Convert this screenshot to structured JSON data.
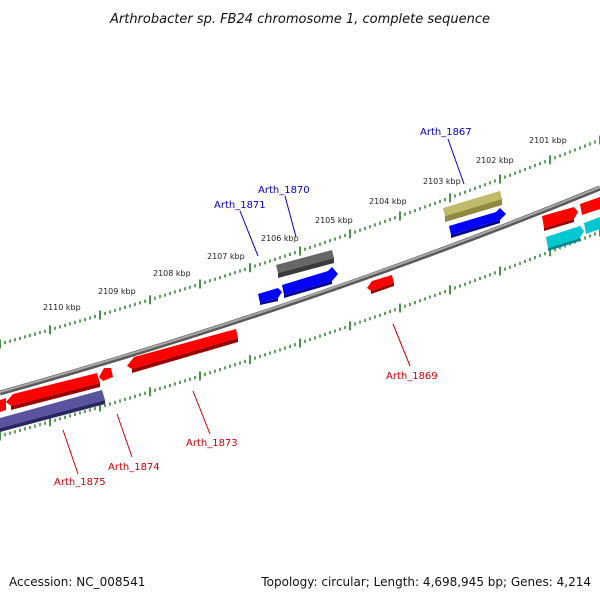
{
  "title": "Arthrobacter sp. FB24 chromosome 1, complete sequence",
  "footer": {
    "accession": "Accession: NC_008541",
    "summary": "Topology: circular; Length: 4,698,945 bp; Genes: 4,214"
  },
  "colors": {
    "backbone": "#888888",
    "ruler_ticks": "#1a7a1a",
    "label_forward": "#0000cc",
    "label_reverse": "#cc0000",
    "gene_red": "#ff0000",
    "gene_blue": "#0000ff",
    "gene_gray": "#666666",
    "gene_olive": "#b5b060",
    "gene_navy": "#4a4490",
    "gene_cyan": "#00c8d0"
  },
  "ruler_labels": [
    "2101 kbp",
    "2102 kbp",
    "2103 kbp",
    "2104 kbp",
    "2105 kbp",
    "2106 kbp",
    "2107 kbp",
    "2108 kbp",
    "2109 kbp",
    "2110 kbp"
  ],
  "gene_labels": {
    "arth_1867": "Arth_1867",
    "arth_1869": "Arth_1869",
    "arth_1870": "Arth_1870",
    "arth_1871": "Arth_1871",
    "arth_1873": "Arth_1873",
    "arth_1874": "Arth_1874",
    "arth_1875": "Arth_1875"
  }
}
